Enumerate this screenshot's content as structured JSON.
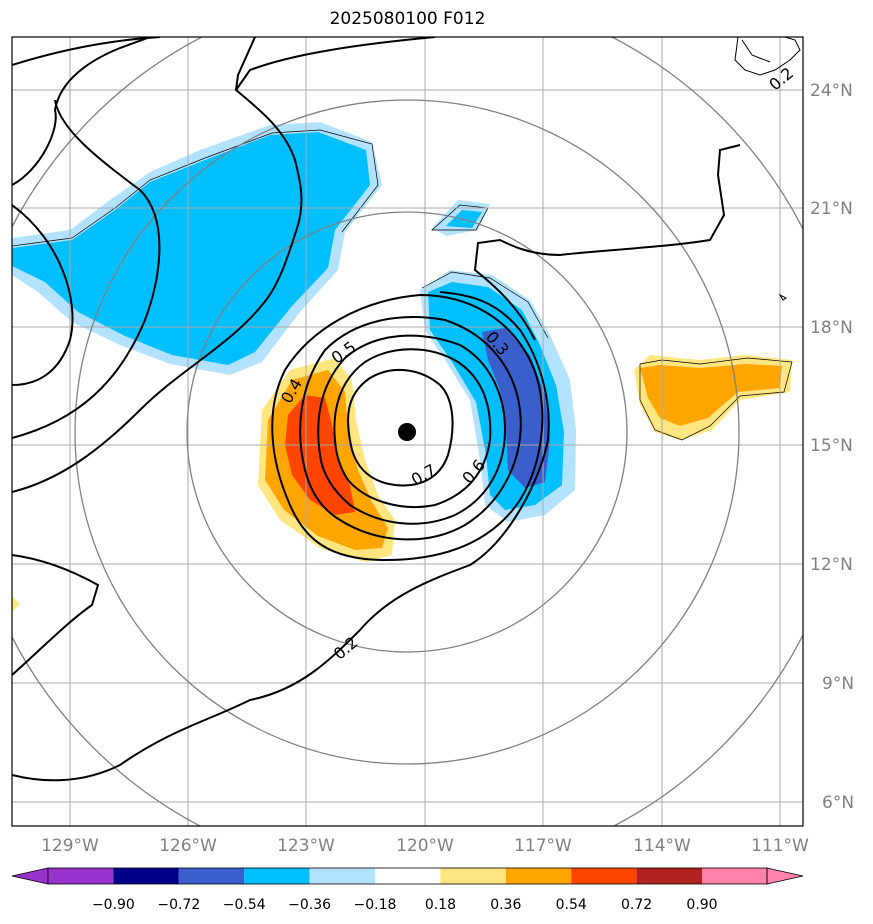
{
  "title": "2025080100 F012",
  "map": {
    "lat_labels": [
      "24°N",
      "21°N",
      "18°N",
      "15°N",
      "12°N",
      "9°N",
      "6°N"
    ],
    "lon_labels": [
      "129°W",
      "126°W",
      "123°W",
      "120°W",
      "117°W",
      "114°W",
      "111°W"
    ],
    "storm_center": {
      "lon": -120.5,
      "lat": 15.3
    },
    "contour_labels": [
      "0.2",
      "0.3",
      "0.4",
      "0.5",
      "0.6",
      "0.7",
      "0.2"
    ],
    "colors": {
      "light_blue": "#b3e2ff",
      "mid_blue": "#00bfff",
      "dark_blue": "#3a5fcd",
      "light_yellow": "#ffe680",
      "orange": "#ffa500",
      "red_orange": "#ff4500",
      "contour": "#000000",
      "grid": "#aaaaaa",
      "range_ring": "#808080"
    }
  },
  "colorbar": {
    "labels": [
      "−0.90",
      "−0.72",
      "−0.54",
      "−0.36",
      "−0.18",
      "0.18",
      "0.36",
      "0.54",
      "0.72",
      "0.90"
    ],
    "colors": [
      "#9932cc",
      "#00008b",
      "#3a5fcd",
      "#00bfff",
      "#b3e2ff",
      "#ffffff",
      "#ffe680",
      "#ffa500",
      "#ff4500",
      "#b22222",
      "#ff82ab"
    ]
  }
}
